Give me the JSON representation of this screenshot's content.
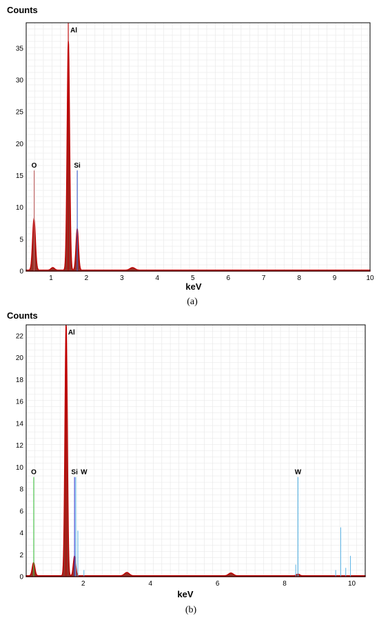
{
  "colors": {
    "spectrum": "#c00000",
    "spectrum_fill": "#8b1a10",
    "grid": "#e6e6e6",
    "frame": "#000000",
    "line_O_a": "#c06060",
    "line_Si_a": "#4060d0",
    "line_O_b": "#40c040",
    "line_Si_b": "#4040d0",
    "line_W_b": "#5ab4e6"
  },
  "chart_data": [
    {
      "type": "line",
      "panel_label": "(a)",
      "ylabel": "Counts",
      "xlabel": "keV",
      "xlim": [
        0.3,
        10
      ],
      "ylim": [
        0,
        39
      ],
      "xticks": [
        1,
        2,
        3,
        4,
        5,
        6,
        7,
        8,
        9,
        10
      ],
      "yticks": [
        0,
        5,
        10,
        15,
        20,
        25,
        30,
        35
      ],
      "grid": true,
      "spectrum_peaks": [
        {
          "center": 0.52,
          "height": 8,
          "width": 0.04
        },
        {
          "center": 1.05,
          "height": 0.4,
          "width": 0.05
        },
        {
          "center": 1.49,
          "height": 36,
          "width": 0.035
        },
        {
          "center": 1.74,
          "height": 6.5,
          "width": 0.035
        },
        {
          "center": 3.3,
          "height": 0.4,
          "width": 0.07
        }
      ],
      "background_level": 0.15,
      "element_lines": [
        {
          "label": "O",
          "energy": 0.525,
          "height": 15.8,
          "color": "#c06060"
        },
        {
          "label": "Al",
          "energy": 1.487,
          "height": 39,
          "color": "#c00000"
        },
        {
          "label": "Si",
          "energy": 1.74,
          "height": 15.8,
          "color": "#4060d0"
        }
      ]
    },
    {
      "type": "line",
      "panel_label": "(b)",
      "ylabel": "Counts",
      "xlabel": "keV",
      "xlim": [
        0.3,
        10.4
      ],
      "ylim": [
        0,
        23
      ],
      "xticks": [
        2,
        4,
        6,
        8,
        10
      ],
      "yticks": [
        0,
        2,
        4,
        6,
        8,
        10,
        12,
        14,
        16,
        18,
        20,
        22
      ],
      "grid": true,
      "spectrum_peaks": [
        {
          "center": 0.52,
          "height": 1.2,
          "width": 0.04
        },
        {
          "center": 1.49,
          "height": 23,
          "width": 0.035
        },
        {
          "center": 1.74,
          "height": 1.8,
          "width": 0.035
        },
        {
          "center": 3.3,
          "height": 0.3,
          "width": 0.07
        },
        {
          "center": 6.4,
          "height": 0.25,
          "width": 0.07
        },
        {
          "center": 8.4,
          "height": 0.15,
          "width": 0.05
        }
      ],
      "background_level": 0.08,
      "element_lines": [
        {
          "label": "O",
          "energy": 0.525,
          "height": 9.1,
          "color": "#40c040"
        },
        {
          "label": "Al",
          "energy": 1.487,
          "height": 23,
          "color": "#c00000"
        },
        {
          "label": "Si",
          "energy": 1.74,
          "height": 9.1,
          "color": "#4040d0"
        },
        {
          "label": "W",
          "energy": 1.775,
          "height": 9.1,
          "color": "#5ab4e6",
          "label_dx": 12
        },
        {
          "label": "W",
          "energy": 8.397,
          "height": 9.1,
          "color": "#5ab4e6"
        }
      ],
      "minor_lines": [
        {
          "energy": 1.84,
          "height": 4.2,
          "color": "#5ab4e6"
        },
        {
          "energy": 8.33,
          "height": 1.1,
          "color": "#5ab4e6"
        },
        {
          "energy": 9.67,
          "height": 4.5,
          "color": "#5ab4e6"
        },
        {
          "energy": 9.52,
          "height": 0.6,
          "color": "#5ab4e6"
        },
        {
          "energy": 9.96,
          "height": 1.9,
          "color": "#5ab4e6"
        },
        {
          "energy": 9.82,
          "height": 0.8,
          "color": "#5ab4e6"
        },
        {
          "energy": 2.02,
          "height": 0.6,
          "color": "#5ab4e6"
        }
      ]
    }
  ]
}
